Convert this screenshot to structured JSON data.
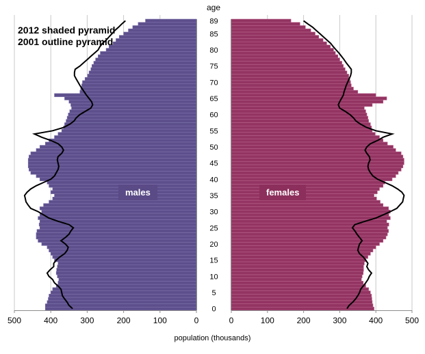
{
  "chart_data": {
    "type": "bar",
    "orientation": "horizontal-pyramid",
    "annotation_lines": [
      "2012 shaded pyramid",
      "2001 outline pyramid"
    ],
    "age_axis_title": "age",
    "xlabel": "population (thousands)",
    "left_label": "males",
    "right_label": "females",
    "xlim": [
      0,
      500
    ],
    "x_ticks": [
      0,
      100,
      200,
      300,
      400,
      500
    ],
    "age_ticks": [
      0,
      5,
      10,
      15,
      20,
      25,
      30,
      35,
      40,
      45,
      50,
      55,
      60,
      65,
      70,
      75,
      80,
      85,
      89
    ],
    "ages": [
      0,
      1,
      2,
      3,
      4,
      5,
      6,
      7,
      8,
      9,
      10,
      11,
      12,
      13,
      14,
      15,
      16,
      17,
      18,
      19,
      20,
      21,
      22,
      23,
      24,
      25,
      26,
      27,
      28,
      29,
      30,
      31,
      32,
      33,
      34,
      35,
      36,
      37,
      38,
      39,
      40,
      41,
      42,
      43,
      44,
      45,
      46,
      47,
      48,
      49,
      50,
      51,
      52,
      53,
      54,
      55,
      56,
      57,
      58,
      59,
      60,
      61,
      62,
      63,
      64,
      65,
      66,
      67,
      68,
      69,
      70,
      71,
      72,
      73,
      74,
      75,
      76,
      77,
      78,
      79,
      80,
      81,
      82,
      83,
      84,
      85,
      86,
      87,
      88,
      89
    ],
    "series": [
      {
        "name": "males",
        "shaded_2012": [
          415,
          415,
          410,
          407,
          405,
          400,
          395,
          385,
          380,
          378,
          382,
          385,
          384,
          382,
          380,
          390,
          395,
          400,
          405,
          410,
          425,
          435,
          440,
          440,
          438,
          430,
          432,
          430,
          435,
          430,
          425,
          430,
          420,
          405,
          395,
          390,
          400,
          395,
          405,
          410,
          430,
          440,
          455,
          460,
          462,
          462,
          462,
          460,
          455,
          440,
          430,
          415,
          405,
          390,
          380,
          370,
          365,
          362,
          358,
          355,
          352,
          348,
          343,
          345,
          350,
          362,
          390,
          320,
          318,
          315,
          313,
          306,
          299,
          295,
          290,
          287,
          282,
          277,
          270,
          264,
          248,
          240,
          229,
          221,
          212,
          200,
          187,
          175,
          160,
          140
        ],
        "outline_2001": [
          340,
          350,
          355,
          362,
          368,
          370,
          372,
          380,
          390,
          395,
          405,
          410,
          402,
          392,
          392,
          385,
          375,
          362,
          355,
          352,
          360,
          372,
          360,
          350,
          345,
          338,
          350,
          380,
          405,
          420,
          435,
          455,
          462,
          468,
          470,
          472,
          465,
          455,
          440,
          420,
          400,
          390,
          385,
          380,
          378,
          380,
          382,
          380,
          370,
          365,
          370,
          380,
          400,
          425,
          445,
          395,
          365,
          348,
          336,
          330,
          320,
          305,
          290,
          285,
          288,
          295,
          302,
          308,
          314,
          320,
          325,
          330,
          335,
          335,
          333,
          320,
          310,
          300,
          290,
          280,
          270,
          265,
          258,
          248,
          240,
          232,
          224,
          214,
          205,
          195
        ]
      },
      {
        "name": "females",
        "shaded_2012": [
          395,
          392,
          390,
          389,
          388,
          385,
          380,
          372,
          365,
          360,
          362,
          365,
          366,
          366,
          368,
          372,
          378,
          385,
          392,
          400,
          410,
          420,
          428,
          432,
          435,
          432,
          436,
          430,
          440,
          436,
          440,
          435,
          420,
          412,
          402,
          395,
          404,
          410,
          420,
          425,
          445,
          455,
          462,
          470,
          475,
          478,
          478,
          475,
          470,
          455,
          448,
          432,
          420,
          410,
          398,
          390,
          388,
          385,
          380,
          378,
          375,
          372,
          368,
          390,
          420,
          430,
          400,
          350,
          338,
          332,
          330,
          328,
          325,
          320,
          315,
          310,
          306,
          300,
          295,
          288,
          283,
          274,
          264,
          254,
          242,
          232,
          220,
          205,
          190,
          165
        ],
        "outline_2001": [
          320,
          326,
          336,
          344,
          350,
          355,
          358,
          365,
          372,
          378,
          382,
          388,
          380,
          375,
          378,
          372,
          365,
          355,
          350,
          352,
          355,
          362,
          355,
          348,
          342,
          335,
          342,
          370,
          400,
          420,
          440,
          458,
          466,
          474,
          476,
          478,
          472,
          460,
          445,
          425,
          405,
          392,
          385,
          380,
          378,
          380,
          384,
          382,
          375,
          370,
          375,
          385,
          405,
          420,
          445,
          400,
          375,
          358,
          345,
          338,
          328,
          315,
          300,
          296,
          300,
          305,
          310,
          312,
          315,
          318,
          322,
          326,
          330,
          332,
          332,
          325,
          318,
          312,
          305,
          298,
          290,
          282,
          275,
          265,
          255,
          245,
          235,
          225,
          212,
          200
        ]
      }
    ]
  }
}
